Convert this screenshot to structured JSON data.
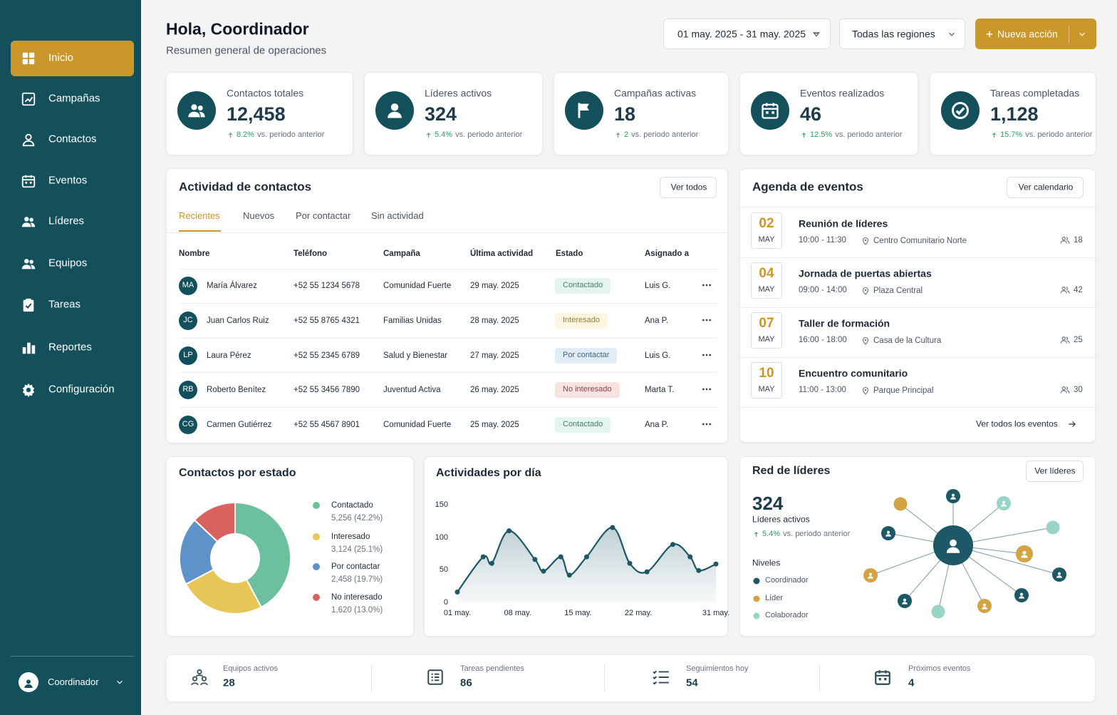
{
  "sidebar": {
    "nav": [
      "Inicio",
      "Campañas",
      "Contactos",
      "Eventos",
      "Líderes",
      "Equipos",
      "Tareas",
      "Reportes",
      "Configuración"
    ],
    "user": "Coordinador"
  },
  "header": {
    "title": "Hola, Coordinador",
    "subtitle": "Resumen general de operaciones",
    "date_range": "01 may. 2025 - 31 may. 2025",
    "region": "Todas las regiones",
    "action": "Nueva acción"
  },
  "kpis": [
    {
      "label": "Contactos totales",
      "value": "12,458",
      "change": "8.2%",
      "note": "vs. periodo anterior"
    },
    {
      "label": "Líderes activos",
      "value": "324",
      "change": "5.4%",
      "note": "vs. periodo anterior"
    },
    {
      "label": "Campañas activas",
      "value": "18",
      "change": "2",
      "note": "vs. periodo anterior"
    },
    {
      "label": "Eventos realizados",
      "value": "46",
      "change": "12.5%",
      "note": "vs. periodo anterior"
    },
    {
      "label": "Tareas completadas",
      "value": "1,128",
      "change": "15.7%",
      "note": "vs. periodo anterior"
    }
  ],
  "contacts": {
    "title": "Actividad de contactos",
    "button": "Ver todos",
    "tabs": [
      "Recientes",
      "Nuevos",
      "Por contactar",
      "Sin actividad"
    ],
    "columns": [
      "Nombre",
      "Teléfono",
      "Campaña",
      "Última actividad",
      "Estado",
      "Asignado a"
    ],
    "rows": [
      [
        "MA",
        "María Álvarez",
        "+52 55 1234 5678",
        "Comunidad Fuerte",
        "29 may. 2025",
        "Contactado",
        "Luis G."
      ],
      [
        "JC",
        "Juan Carlos Ruiz",
        "+52 55 8765 4321",
        "Familias Unidas",
        "28 may. 2025",
        "Interesado",
        "Ana P."
      ],
      [
        "LP",
        "Laura Pérez",
        "+52 55 2345 6789",
        "Salud y Bienestar",
        "27 may. 2025",
        "Por contactar",
        "Luis G."
      ],
      [
        "RB",
        "Roberto Benítez",
        "+52 55 3456 7890",
        "Juventud Activa",
        "26 may. 2025",
        "No interesado",
        "Marta T."
      ],
      [
        "CG",
        "Carmen Gutiérrez",
        "+52 55 4567 8901",
        "Comunidad Fuerte",
        "25 may. 2025",
        "Contactado",
        "Ana P."
      ]
    ]
  },
  "agenda": {
    "title": "Agenda de eventos",
    "button": "Ver calendario",
    "events": [
      {
        "day": "02",
        "month": "MAY",
        "title": "Reunión de líderes",
        "time": "10:00 - 11:30",
        "place": "Centro Comunitario Norte",
        "attendees": "18"
      },
      {
        "day": "04",
        "month": "MAY",
        "title": "Jornada de puertas abiertas",
        "time": "09:00 - 14:00",
        "place": "Plaza Central",
        "attendees": "42"
      },
      {
        "day": "07",
        "month": "MAY",
        "title": "Taller de formación",
        "time": "16:00 - 18:00",
        "place": "Casa de la Cultura",
        "attendees": "25"
      },
      {
        "day": "10",
        "month": "MAY",
        "title": "Encuentro comunitario",
        "time": "11:00 - 13:00",
        "place": "Parque Principal",
        "attendees": "30"
      }
    ],
    "footer": "Ver todos los eventos"
  },
  "chart_data": [
    {
      "type": "pie",
      "title": "Contactos por estado",
      "categories": [
        "Contactado",
        "Interesado",
        "Por contactar",
        "No interesado"
      ],
      "values": [
        5256,
        3124,
        2458,
        1620
      ],
      "value_labels": [
        "5,256 (42.2%)",
        "3,124 (25.1%)",
        "2,458 (19.7%)",
        "1,620 (13.0%)"
      ],
      "colors": [
        "#6cc09e",
        "#e7c657",
        "#5d93c8",
        "#d9625f"
      ]
    },
    {
      "type": "line",
      "title": "Actividades por día",
      "x": [
        1,
        4,
        5,
        7,
        10,
        11,
        13,
        14,
        16,
        19,
        21,
        23,
        26,
        28,
        29,
        31
      ],
      "xlim": [
        1,
        31
      ],
      "xticks": [
        {
          "value": 1,
          "label": "01 may."
        },
        {
          "value": 8,
          "label": "08 may."
        },
        {
          "value": 15,
          "label": "15 may."
        },
        {
          "value": 22,
          "label": "22 may."
        },
        {
          "value": 31,
          "label": "31 may."
        }
      ],
      "ylim": [
        0,
        150
      ],
      "yticks": [
        0,
        50,
        100,
        150
      ],
      "series": [
        {
          "color": "#1d5866",
          "values": [
            17,
            71,
            61,
            111,
            67,
            49,
            71,
            43,
            71,
            116,
            61,
            48,
            90,
            71,
            50,
            60
          ]
        }
      ]
    }
  ],
  "leaders": {
    "title": "Red de líderes",
    "button": "Ver líderes",
    "value": "324",
    "label": "Líderes activos",
    "change": "5.4%",
    "note": "vs. periodo anterior",
    "levels_title": "Niveles",
    "levels": [
      {
        "name": "Coordinador",
        "color": "#1d5866"
      },
      {
        "name": "Líder",
        "color": "#d2a443"
      },
      {
        "name": "Colaborador",
        "color": "#98d5c6"
      }
    ]
  },
  "summary": [
    {
      "label": "Equipos activos",
      "value": "28"
    },
    {
      "label": "Tareas pendientes",
      "value": "86"
    },
    {
      "label": "Seguimientos hoy",
      "value": "54"
    },
    {
      "label": "Próximos eventos",
      "value": "4"
    }
  ]
}
